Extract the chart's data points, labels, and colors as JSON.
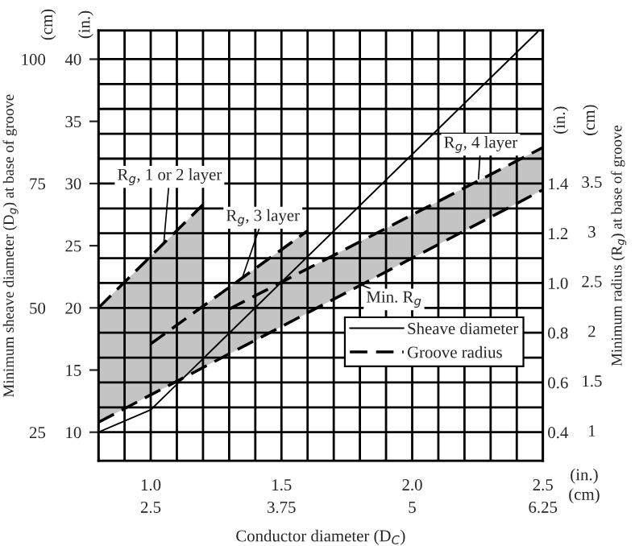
{
  "chart_data": {
    "type": "line",
    "xlabel": "Conductor diameter (D$_{C}$)",
    "ylabel": "Minimum sheave diameter (D$_{g}$) at base of groove",
    "y2label": "Minimum radius (R$_{g}$) at base of groove",
    "xlim": [
      0.8,
      2.5
    ],
    "xticks": [
      {
        "value": 0.8,
        "label": null
      },
      {
        "value": 0.9,
        "label": null
      },
      {
        "value": 1.0,
        "label": "1.0"
      },
      {
        "value": 1.1,
        "label": null
      },
      {
        "value": 1.2,
        "label": null
      },
      {
        "value": 1.3,
        "label": null
      },
      {
        "value": 1.4,
        "label": null
      },
      {
        "value": 1.5,
        "label": "1.5"
      },
      {
        "value": 1.6,
        "label": null
      },
      {
        "value": 1.7,
        "label": null
      },
      {
        "value": 1.8,
        "label": null
      },
      {
        "value": 1.9,
        "label": null
      },
      {
        "value": 2.0,
        "label": "2.0"
      },
      {
        "value": 2.1,
        "label": null
      },
      {
        "value": 2.2,
        "label": null
      },
      {
        "value": 2.3,
        "label": null
      },
      {
        "value": 2.4,
        "label": null
      },
      {
        "value": 2.5,
        "label": "2.5"
      }
    ],
    "x2lim": [
      2.0,
      6.25
    ],
    "x2ticks": [
      2.5,
      3.75,
      5,
      6.25
    ],
    "ylim": [
      7.7,
      42.3
    ],
    "yticks": [
      10,
      15,
      20,
      25,
      30,
      35,
      40
    ],
    "y3lim": [
      19.25,
      105.75
    ],
    "y3ticks": [
      25,
      50,
      75,
      100
    ],
    "y2lim": [
      0.285,
      2.015
    ],
    "y2ticks": [
      {
        "value": 0.4,
        "label": "0.4"
      },
      {
        "value": 0.5,
        "label": null
      },
      {
        "value": 0.6,
        "label": "0.6"
      },
      {
        "value": 0.7,
        "label": null
      },
      {
        "value": 0.8,
        "label": "0.8"
      },
      {
        "value": 0.9,
        "label": null
      },
      {
        "value": 1.0,
        "label": "1.0"
      },
      {
        "value": 1.1,
        "label": null
      },
      {
        "value": 1.2,
        "label": "1.2"
      },
      {
        "value": 1.3,
        "label": null
      },
      {
        "value": 1.4,
        "label": "1.4"
      },
      {
        "value": 1.5,
        "label": null
      },
      {
        "value": 1.6,
        "label": null
      },
      {
        "value": 1.7,
        "label": null
      },
      {
        "value": 1.8,
        "label": null
      },
      {
        "value": 1.9,
        "label": null
      }
    ],
    "grid": true,
    "legend": "bottom right",
    "series": [
      {
        "name": "Sheave diameter",
        "line_style": "solid",
        "color": "#000000",
        "x": [
          0.8,
          1.0,
          2.48
        ],
        "values": [
          10,
          11.8,
          42.2
        ]
      },
      {
        "name": "Groove radius",
        "axis": "y2",
        "line_style": "dashed",
        "color": "#000000",
        "x": [
          0.8,
          2.5
        ],
        "values": [
          0.44,
          1.375
        ]
      },
      {
        "axis": "y2",
        "line_style": "dashed",
        "color": "#000000",
        "x": [
          0.8,
          1.2
        ],
        "values": [
          0.9,
          1.315
        ],
        "lower": [
          0.44,
          0.66
        ],
        "upper": [
          0.9,
          1.315
        ]
      },
      {
        "axis": "y2",
        "line_style": "dashed",
        "color": "#000000",
        "x": [
          1.0,
          1.6
        ],
        "values": [
          0.755,
          1.21
        ],
        "lower": [
          0.55,
          0.88
        ],
        "upper": [
          0.755,
          1.21
        ]
      },
      {
        "axis": "y2",
        "line_style": "dashed",
        "color": "#000000",
        "x": [
          1.3,
          2.5
        ],
        "values": [
          0.895,
          1.545
        ],
        "lower": [
          0.715,
          1.375
        ],
        "upper": [
          0.895,
          1.545
        ]
      }
    ],
    "annotations": [
      {
        "text": "R$_{g}$, 1 or 2 layer",
        "x": 1.05,
        "y": 25.2
      },
      {
        "text": "R$_{g}$, 3 layer",
        "x": 1.35,
        "y": 22.4
      },
      "R$_{g}$, 4 layer",
      "Min. R$_{g}$",
      "(cm)",
      "(in.)",
      "(in.)",
      "(cm)",
      "(in.)",
      "(cm)",
      "1",
      "1.5",
      "2",
      "2.5",
      "3",
      "3.5"
    ]
  }
}
